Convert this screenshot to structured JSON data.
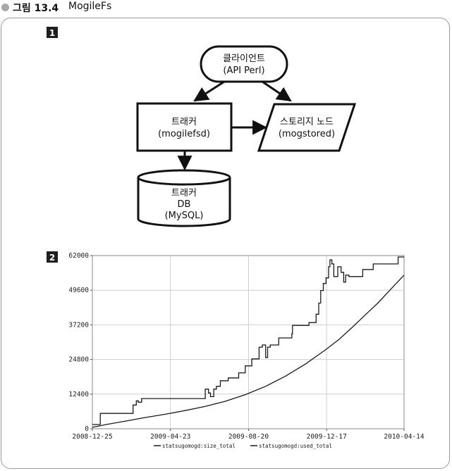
{
  "figure": {
    "label": "그림 13.4",
    "title": "MogileFs"
  },
  "panels": [
    {
      "badge": "1"
    },
    {
      "badge": "2"
    }
  ],
  "diagram": {
    "nodes": {
      "client": {
        "lines": [
          "클라이언트",
          "(API Perl)"
        ],
        "shape": "rounded"
      },
      "tracker": {
        "lines": [
          "트래커",
          "(mogilefsd)"
        ],
        "shape": "rectangle"
      },
      "storage": {
        "lines": [
          "스토리지 노드",
          "(mogstored)"
        ],
        "shape": "parallelogram"
      },
      "db": {
        "lines": [
          "트래커",
          "DB",
          "(MySQL)"
        ],
        "shape": "cylinder"
      }
    },
    "edges": [
      {
        "from": "client",
        "to": "tracker"
      },
      {
        "from": "client",
        "to": "storage"
      },
      {
        "from": "tracker",
        "to": "storage"
      },
      {
        "from": "tracker",
        "to": "db"
      }
    ]
  },
  "chart_data": {
    "type": "line",
    "title": "",
    "xlabel": "",
    "ylabel": "",
    "xlim": [
      "2008-12-25",
      "2010-04-14"
    ],
    "ylim": [
      0,
      62000
    ],
    "x_ticks": [
      "2008-12-25",
      "2009-04-23",
      "2009-08-20",
      "2009-12-17",
      "2010-04-14"
    ],
    "y_ticks": [
      "0",
      "12400",
      "24800",
      "37200",
      "49600",
      "62000"
    ],
    "grid": true,
    "legend_position": "bottom-center",
    "colors": {
      "line": "#1a1a1a",
      "grid": "#cfcfcf"
    },
    "series": [
      {
        "name": "statsugomogd:size_total",
        "style": "step",
        "x": [
          "2008-12-25",
          "2009-01-05",
          "2009-01-06",
          "2009-02-20",
          "2009-02-25",
          "2009-03-02",
          "2009-03-05",
          "2009-03-10",
          "2009-05-15",
          "2009-06-15",
          "2009-06-20",
          "2009-06-23",
          "2009-06-28",
          "2009-07-02",
          "2009-07-08",
          "2009-07-20",
          "2009-07-28",
          "2009-08-05",
          "2009-08-15",
          "2009-08-25",
          "2009-09-05",
          "2009-09-10",
          "2009-09-15",
          "2009-09-18",
          "2009-09-22",
          "2009-10-05",
          "2009-10-25",
          "2009-10-26",
          "2009-11-10",
          "2009-11-20",
          "2009-12-01",
          "2009-12-05",
          "2009-12-08",
          "2009-12-12",
          "2009-12-16",
          "2009-12-20",
          "2009-12-22",
          "2009-12-25",
          "2009-12-28",
          "2010-01-03",
          "2010-01-08",
          "2010-01-12",
          "2010-01-15",
          "2010-01-20",
          "2010-02-05",
          "2010-02-10",
          "2010-02-26",
          "2010-03-20",
          "2010-04-05",
          "2010-04-14"
        ],
        "y": [
          1500,
          1500,
          5500,
          5500,
          8500,
          10000,
          9500,
          10800,
          10800,
          14200,
          12800,
          11500,
          14200,
          15200,
          17200,
          18200,
          18200,
          20000,
          22500,
          25000,
          29200,
          30000,
          25500,
          29200,
          30000,
          32500,
          34000,
          37000,
          37000,
          38000,
          41000,
          45000,
          49500,
          52000,
          54000,
          58000,
          60500,
          59000,
          54500,
          58000,
          56000,
          52500,
          55000,
          54500,
          54500,
          57000,
          59000,
          59000,
          61500,
          61500
        ]
      },
      {
        "name": "statsugomogd:used_total",
        "style": "line",
        "x": [
          "2008-12-25",
          "2009-01-15",
          "2009-02-15",
          "2009-03-15",
          "2009-04-15",
          "2009-05-15",
          "2009-06-15",
          "2009-07-15",
          "2009-08-15",
          "2009-09-15",
          "2009-10-15",
          "2009-11-15",
          "2009-12-15",
          "2010-01-05",
          "2010-01-25",
          "2010-02-15",
          "2010-03-05",
          "2010-03-25",
          "2010-04-14"
        ],
        "y": [
          500,
          1500,
          2800,
          4000,
          5200,
          6500,
          8000,
          9800,
          12200,
          15200,
          18800,
          23200,
          28200,
          32000,
          36300,
          41000,
          45000,
          50000,
          55000
        ]
      }
    ]
  }
}
